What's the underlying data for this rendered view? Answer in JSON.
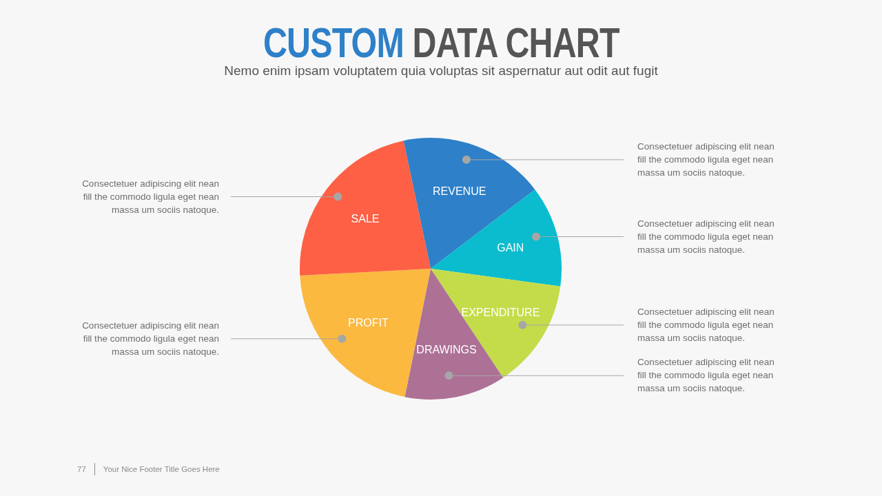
{
  "chart_data": {
    "type": "pie",
    "title": "CUSTOM DATA CHART",
    "subtitle": "Nemo enim ipsam voluptatem quia voluptas sit aspernatur aut odit aut fugit",
    "categories": [
      "REVENUE",
      "GAIN",
      "EXPENDITURE",
      "DRAWINGS",
      "PROFIT",
      "SALE"
    ],
    "values": [
      18,
      12.5,
      13.5,
      12.5,
      21,
      22.5
    ],
    "colors": [
      "#2e80c8",
      "#0abccd",
      "#c5dc4a",
      "#ad7196",
      "#fbb940",
      "#fd6045"
    ],
    "annotations": [
      "Consectetuer adipiscing elit nean\nfill the commodo  ligula eget nean\nmassa um sociis natoque.",
      "Consectetuer adipiscing elit nean\nfill the commodo  ligula eget nean\nmassa um sociis natoque.",
      "Consectetuer adipiscing elit nean\nfill the commodo  ligula eget nean\nmassa um sociis natoque.",
      "Consectetuer adipiscing elit nean\nfill the commodo  ligula eget nean\nmassa um sociis natoque.",
      "Consectetuer adipiscing elit nean\nfill the commodo  ligula eget nean\nmassa um sociis natoque.",
      "Consectetuer adipiscing elit nean\nfill the commodo  ligula eget nean\nmassa um sociis natoque.",
      "77",
      "Your Nice Footer Title Goes Here"
    ]
  }
}
